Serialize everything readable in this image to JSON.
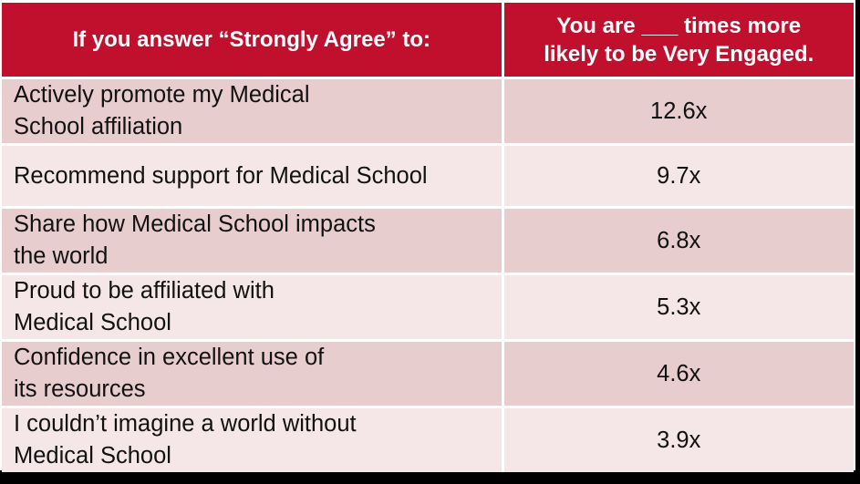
{
  "table": {
    "header": {
      "statement_label": "If you answer “Strongly Agree” to:",
      "multiplier_line1": "You are ___ times more",
      "multiplier_line2": "likely to be Very Engaged."
    },
    "rows": [
      {
        "statement_line1": "Actively promote my Medical",
        "statement_line2": "School affiliation",
        "multiplier": "12.6x"
      },
      {
        "statement_line1": "Recommend support for Medical School",
        "statement_line2": "",
        "multiplier": "9.7x"
      },
      {
        "statement_line1": "Share how Medical School impacts",
        "statement_line2": "the world",
        "multiplier": "6.8x"
      },
      {
        "statement_line1": "Proud to be affiliated with",
        "statement_line2": "Medical School",
        "multiplier": "5.3x"
      },
      {
        "statement_line1": "Confidence in excellent use of",
        "statement_line2": "its resources",
        "multiplier": "4.6x"
      },
      {
        "statement_line1": "I couldn’t imagine a world without",
        "statement_line2": "Medical School",
        "multiplier": "3.9x"
      }
    ]
  },
  "colors": {
    "header_bg": "#c0102e",
    "row_dark": "#e8cdcf",
    "row_light": "#f5e6e7"
  }
}
